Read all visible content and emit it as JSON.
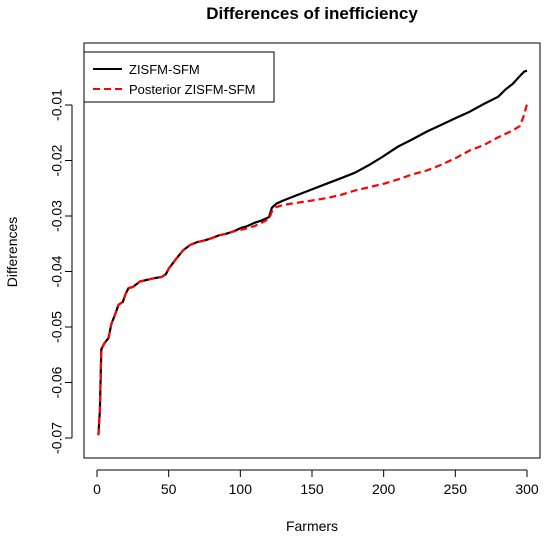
{
  "chart_data": {
    "type": "line",
    "title": "Differences of inefficiency",
    "xlabel": "Farmers",
    "ylabel": "Differences",
    "xlim": [
      0,
      300
    ],
    "ylim": [
      -0.07,
      -0.005
    ],
    "x_ticks": [
      0,
      50,
      100,
      150,
      200,
      250,
      300
    ],
    "y_ticks": [
      -0.07,
      -0.06,
      -0.05,
      -0.04,
      -0.03,
      -0.02,
      -0.01
    ],
    "y_tick_labels": [
      "-0.07",
      "-0.06",
      "-0.05",
      "-0.04",
      "-0.03",
      "-0.02",
      "-0.01"
    ],
    "legend_placement": "top-left",
    "grid": false,
    "series": [
      {
        "name": "ZISFM-SFM",
        "color": "#000000",
        "style": "solid",
        "x": [
          1,
          2,
          3,
          5,
          8,
          10,
          13,
          15,
          18,
          20,
          22,
          25,
          30,
          35,
          40,
          45,
          48,
          50,
          55,
          60,
          65,
          70,
          75,
          80,
          85,
          90,
          95,
          100,
          105,
          110,
          115,
          120,
          122,
          125,
          130,
          140,
          150,
          160,
          170,
          180,
          190,
          200,
          210,
          220,
          230,
          240,
          250,
          260,
          270,
          280,
          285,
          290,
          295,
          298,
          300
        ],
        "values": [
          -0.0695,
          -0.065,
          -0.054,
          -0.053,
          -0.052,
          -0.0495,
          -0.0475,
          -0.046,
          -0.0455,
          -0.044,
          -0.043,
          -0.0428,
          -0.0418,
          -0.0415,
          -0.0412,
          -0.041,
          -0.0405,
          -0.0395,
          -0.0378,
          -0.0362,
          -0.0352,
          -0.0347,
          -0.0344,
          -0.034,
          -0.0335,
          -0.0332,
          -0.0328,
          -0.0322,
          -0.0318,
          -0.0312,
          -0.0308,
          -0.0302,
          -0.0285,
          -0.0278,
          -0.0272,
          -0.0262,
          -0.0252,
          -0.0242,
          -0.0232,
          -0.0222,
          -0.0208,
          -0.0192,
          -0.0175,
          -0.0162,
          -0.0148,
          -0.0136,
          -0.0124,
          -0.0112,
          -0.0098,
          -0.0085,
          -0.0072,
          -0.0062,
          -0.0048,
          -0.004,
          -0.0038
        ]
      },
      {
        "name": "Posterior ZISFM-SFM",
        "color": "#ff0000",
        "style": "dashed",
        "x": [
          1,
          2,
          3,
          5,
          8,
          10,
          13,
          15,
          18,
          20,
          22,
          25,
          30,
          35,
          40,
          45,
          48,
          50,
          55,
          60,
          65,
          70,
          75,
          80,
          85,
          90,
          95,
          100,
          105,
          110,
          115,
          120,
          122,
          125,
          130,
          140,
          150,
          160,
          170,
          180,
          190,
          200,
          210,
          220,
          230,
          240,
          250,
          260,
          270,
          280,
          285,
          290,
          295,
          298,
          300
        ],
        "values": [
          -0.0695,
          -0.065,
          -0.054,
          -0.053,
          -0.052,
          -0.0495,
          -0.0475,
          -0.046,
          -0.0455,
          -0.044,
          -0.043,
          -0.0428,
          -0.0418,
          -0.0415,
          -0.0412,
          -0.041,
          -0.0405,
          -0.0395,
          -0.0378,
          -0.0362,
          -0.0352,
          -0.0347,
          -0.0344,
          -0.034,
          -0.0335,
          -0.0332,
          -0.0328,
          -0.0325,
          -0.0322,
          -0.0318,
          -0.0312,
          -0.0305,
          -0.0292,
          -0.0284,
          -0.028,
          -0.0276,
          -0.0272,
          -0.0268,
          -0.0262,
          -0.0254,
          -0.0248,
          -0.0242,
          -0.0234,
          -0.0225,
          -0.0218,
          -0.0208,
          -0.0196,
          -0.0182,
          -0.0172,
          -0.0158,
          -0.0152,
          -0.0146,
          -0.0138,
          -0.0118,
          -0.0098
        ]
      }
    ]
  }
}
